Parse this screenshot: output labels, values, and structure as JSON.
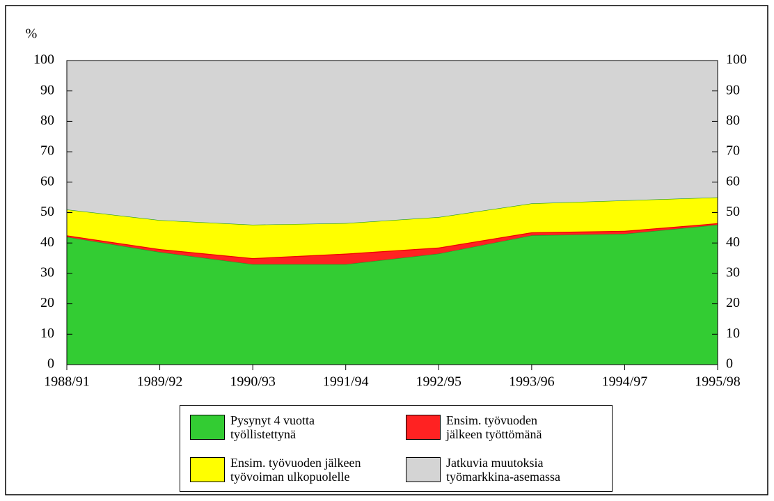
{
  "chart_data": {
    "type": "stacked_area",
    "ylabel": "%",
    "categories": [
      "1988/91",
      "1989/92",
      "1990/93",
      "1991/94",
      "1992/95",
      "1993/96",
      "1994/97",
      "1995/98"
    ],
    "series": [
      {
        "name": "Pysynyt 4 vuotta\ntyöllistettynä",
        "color": "#33cc33",
        "values": [
          42,
          37,
          33,
          33,
          36.5,
          42.5,
          43,
          46
        ]
      },
      {
        "name": "Ensim. työvuoden\njälkeen työttömänä",
        "color": "#ff2222",
        "values": [
          0.5,
          1,
          2,
          3.5,
          2,
          1,
          1,
          0.5
        ]
      },
      {
        "name": "Ensim. työvuoden jälkeen\ntyövoiman ulkopuolelle",
        "color": "#ffff00",
        "values": [
          8.5,
          9.5,
          11,
          10,
          10,
          9.5,
          10,
          8.5
        ]
      },
      {
        "name": "Jatkuvia muutoksia\ntyömarkkina-asemassa",
        "color": "#d4d4d4",
        "values": [
          49,
          52.5,
          54,
          53.5,
          51.5,
          47,
          46,
          45
        ]
      }
    ],
    "ylim": [
      0,
      100
    ],
    "yticks": [
      0,
      10,
      20,
      30,
      40,
      50,
      60,
      70,
      80,
      90,
      100
    ],
    "legend": "bottom"
  }
}
